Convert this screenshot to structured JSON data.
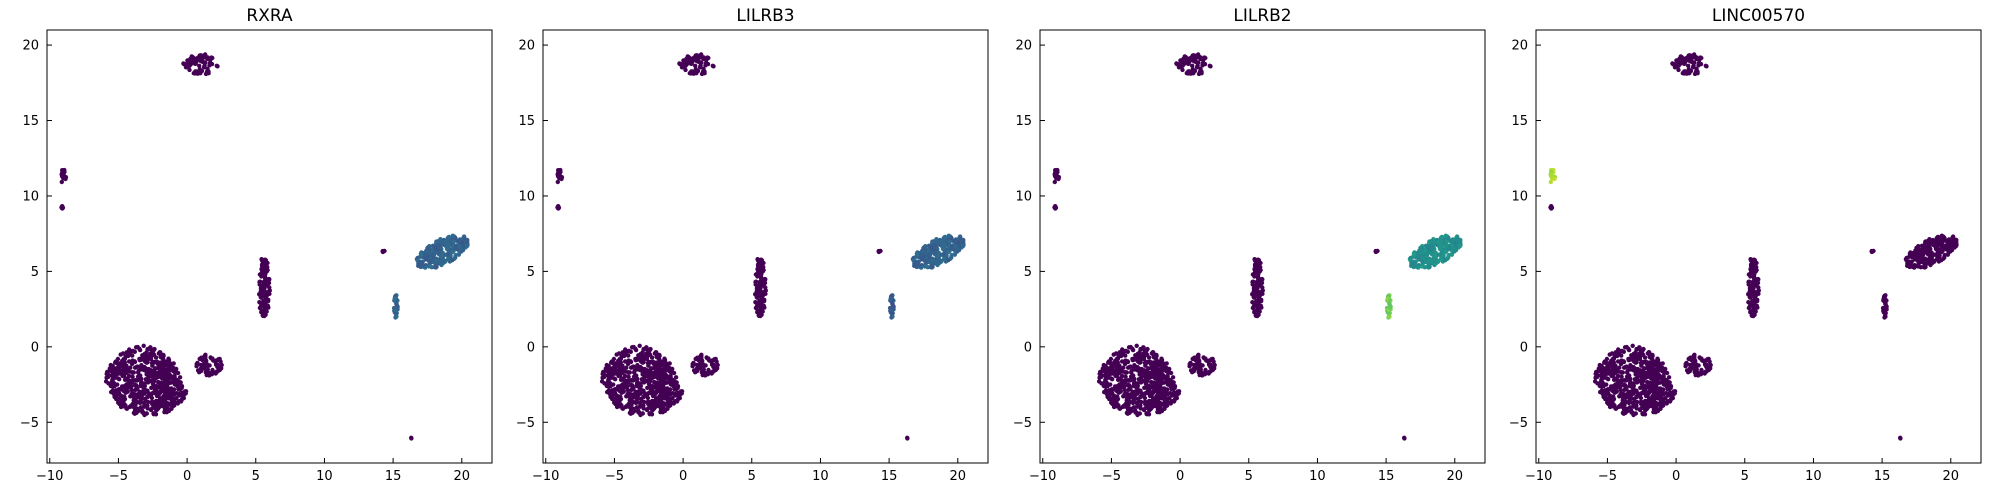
{
  "figure": {
    "palette": {
      "low": "#440154",
      "mid": "#2b6f8e",
      "teal": "#21908c",
      "green": "#5ec962",
      "yellow": "#bddf26"
    }
  },
  "chart_data": [
    {
      "type": "scatter",
      "title": "RXRA",
      "xlim": [
        -10.2,
        22.2
      ],
      "ylim": [
        -7.7,
        21.0
      ],
      "xticks": [
        -10,
        -5,
        0,
        5,
        10,
        15,
        20
      ],
      "yticks": [
        -5,
        0,
        5,
        10,
        15,
        20
      ],
      "colormap": "viridis",
      "cluster_levels": {
        "top": 0.0,
        "left_upper": 0.0,
        "left_lower": 0.0,
        "main": 0.0,
        "mid_small": 0.0,
        "vertical": 0.0,
        "right_small": 0.0,
        "right_big": 0.32,
        "right_vertical": 0.32,
        "isolated": 0.0
      }
    },
    {
      "type": "scatter",
      "title": "LILRB3",
      "xlim": [
        -10.2,
        22.2
      ],
      "ylim": [
        -7.7,
        21.0
      ],
      "xticks": [
        -10,
        -5,
        0,
        5,
        10,
        15,
        20
      ],
      "yticks": [
        -5,
        0,
        5,
        10,
        15,
        20
      ],
      "colormap": "viridis",
      "cluster_levels": {
        "top": 0.0,
        "left_upper": 0.0,
        "left_lower": 0.0,
        "main": 0.0,
        "mid_small": 0.0,
        "vertical": 0.0,
        "right_small": 0.0,
        "right_big": 0.32,
        "right_vertical": 0.28,
        "isolated": 0.0
      }
    },
    {
      "type": "scatter",
      "title": "LILRB2",
      "xlim": [
        -10.2,
        22.2
      ],
      "ylim": [
        -7.7,
        21.0
      ],
      "xticks": [
        -10,
        -5,
        0,
        5,
        10,
        15,
        20
      ],
      "yticks": [
        -5,
        0,
        5,
        10,
        15,
        20
      ],
      "colormap": "viridis",
      "cluster_levels": {
        "top": 0.0,
        "left_upper": 0.0,
        "left_lower": 0.0,
        "main": 0.0,
        "mid_small": 0.0,
        "vertical": 0.0,
        "right_small": 0.0,
        "right_big": 0.5,
        "right_vertical": 0.78,
        "isolated": 0.0
      }
    },
    {
      "type": "scatter",
      "title": "LINC00570",
      "xlim": [
        -10.2,
        22.2
      ],
      "ylim": [
        -7.7,
        21.0
      ],
      "xticks": [
        -10,
        -5,
        0,
        5,
        10,
        15,
        20
      ],
      "yticks": [
        -5,
        0,
        5,
        10,
        15,
        20
      ],
      "colormap": "viridis",
      "cluster_levels": {
        "top": 0.0,
        "left_upper": 0.88,
        "left_lower": 0.0,
        "main": 0.0,
        "mid_small": 0.0,
        "vertical": 0.0,
        "right_small": 0.0,
        "right_big": 0.0,
        "right_vertical": 0.0,
        "isolated": 0.0
      }
    }
  ],
  "clusters": {
    "top": {
      "cx": 1.0,
      "cy": 18.7,
      "rx": 1.3,
      "ry": 0.7,
      "n": 70
    },
    "left_upper": {
      "cx": -9.0,
      "cy": 11.3,
      "rx": 0.2,
      "ry": 0.5,
      "n": 14
    },
    "left_lower": {
      "cx": -9.1,
      "cy": 9.2,
      "rx": 0.15,
      "ry": 0.15,
      "n": 6
    },
    "main": {
      "cx": -3.2,
      "cy": -2.2,
      "rx": 2.8,
      "ry": 2.3,
      "n": 620
    },
    "mid_small": {
      "cx": 1.6,
      "cy": -1.2,
      "rx": 1.0,
      "ry": 0.7,
      "n": 70
    },
    "vertical": {
      "cx": 5.6,
      "cy": 4.0,
      "rx": 0.45,
      "ry": 2.0,
      "n": 110
    },
    "right_small": {
      "cx": 14.3,
      "cy": 6.3,
      "rx": 0.1,
      "ry": 0.1,
      "n": 3
    },
    "right_big": {
      "cx": 18.6,
      "cy": 6.3,
      "rx": 1.9,
      "ry": 0.9,
      "n": 240
    },
    "right_vertical": {
      "cx": 15.2,
      "cy": 2.7,
      "rx": 0.15,
      "ry": 0.8,
      "n": 28
    },
    "isolated": {
      "cx": 16.3,
      "cy": -6.0,
      "rx": 0.08,
      "ry": 0.08,
      "n": 2
    }
  }
}
